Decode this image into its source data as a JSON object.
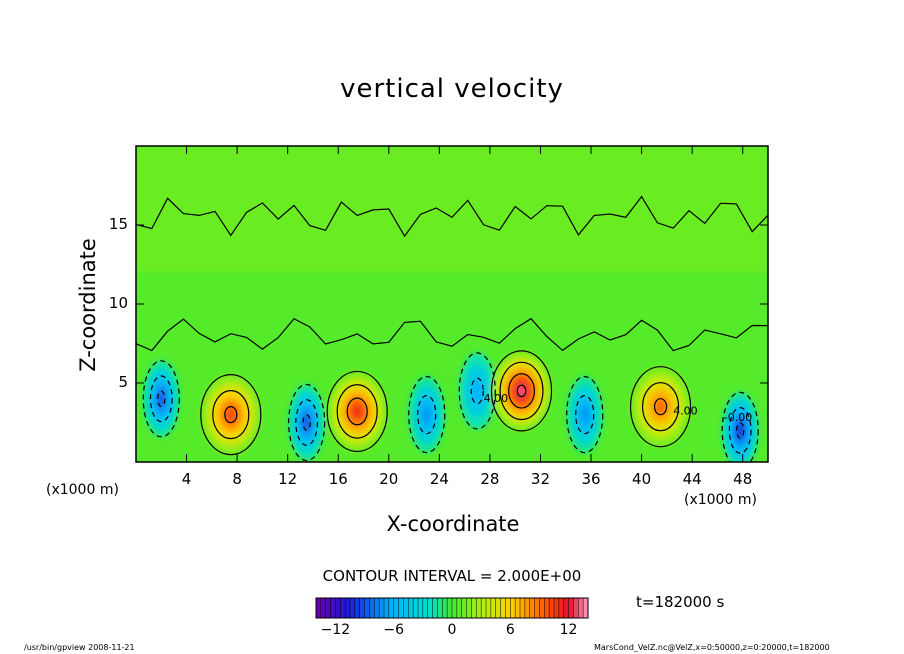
{
  "chart_data": {
    "type": "heatmap",
    "subtype": "filled-contour",
    "title": "vertical velocity",
    "xlabel": "X-coordinate",
    "ylabel": "Z-coordinate",
    "x_unit_label": "(x1000 m)",
    "x_ticks": [
      4,
      8,
      12,
      16,
      20,
      24,
      28,
      32,
      36,
      40,
      44,
      48
    ],
    "y_ticks": [
      5,
      10,
      15
    ],
    "xlim": [
      0,
      50
    ],
    "ylim": [
      0,
      20
    ],
    "colorbar": {
      "range": [
        -14,
        14
      ],
      "ticks": [
        -12,
        -6,
        0,
        6,
        12
      ],
      "colormap": "rainbow (violet-blue-cyan-green-yellow-red-pink)"
    },
    "contour_interval_text": "CONTOUR INTERVAL = 2.000E+00",
    "contour_labels": [
      "-0.00",
      "4.00",
      "4.00"
    ],
    "time_text": "t=182000 s",
    "features": [
      {
        "x": 2,
        "z": 4,
        "sign": "negative",
        "peak": -9
      },
      {
        "x": 7.5,
        "z": 3,
        "sign": "positive",
        "peak": 10
      },
      {
        "x": 13.5,
        "z": 2.5,
        "sign": "negative",
        "peak": -9
      },
      {
        "x": 17.5,
        "z": 3.2,
        "sign": "positive",
        "peak": 11
      },
      {
        "x": 23,
        "z": 3,
        "sign": "negative",
        "peak": -7
      },
      {
        "x": 27,
        "z": 4.5,
        "sign": "negative",
        "peak": -6
      },
      {
        "x": 30.5,
        "z": 4.5,
        "sign": "positive",
        "peak": 13
      },
      {
        "x": 35.5,
        "z": 3,
        "sign": "negative",
        "peak": -7
      },
      {
        "x": 41.5,
        "z": 3.5,
        "sign": "positive",
        "peak": 9
      },
      {
        "x": 47.8,
        "z": 2,
        "sign": "negative",
        "peak": -10
      }
    ],
    "legend": "none",
    "grid": false
  },
  "footer": {
    "left": "/usr/bin/gpview   2008-11-21",
    "right": "MarsCond_VelZ.nc@VelZ,x=0:50000,z=0:20000,t=182000"
  }
}
